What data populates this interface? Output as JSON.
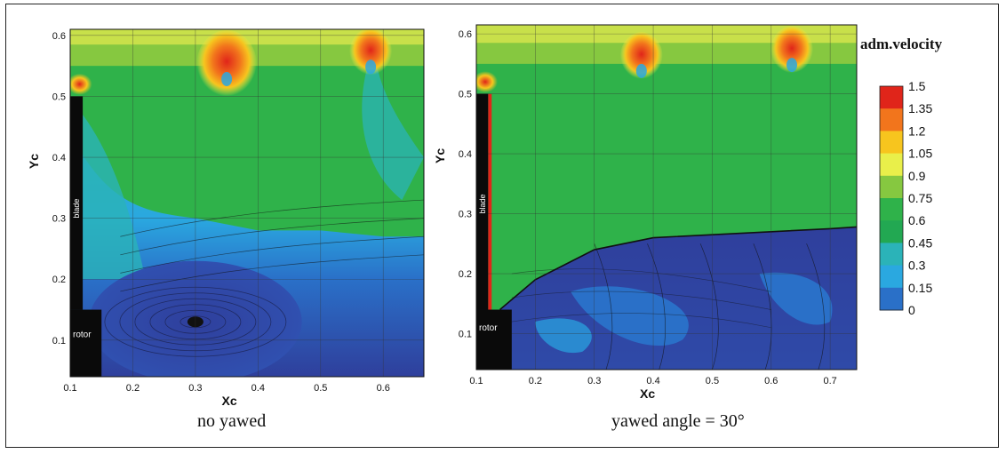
{
  "colorbar": {
    "title": "adm.velocity",
    "levels": [
      "1.5",
      "1.35",
      "1.2",
      "1.05",
      "0.9",
      "0.75",
      "0.6",
      "0.45",
      "0.3",
      "0.15",
      "0"
    ],
    "colors": [
      "#e0251a",
      "#f2751c",
      "#f7c51e",
      "#e9ef4a",
      "#86c840",
      "#2fb24a",
      "#22a852",
      "#2bb3b8",
      "#2aa8e0",
      "#2a70c8",
      "#2f3f9c"
    ]
  },
  "chart_data": [
    {
      "type": "heatmap",
      "caption": "no yawed",
      "xlabel": "Xc",
      "ylabel": "Yc",
      "x_ticks": [
        "0.1",
        "0.2",
        "0.3",
        "0.4",
        "0.5",
        "0.6"
      ],
      "y_ticks": [
        "0.1",
        "0.2",
        "0.3",
        "0.4",
        "0.5",
        "0.6"
      ],
      "xlim": [
        0.1,
        0.665
      ],
      "ylim": [
        0.04,
        0.61
      ],
      "grid": true,
      "labels": {
        "blade": "blade",
        "rotor": "rotor"
      },
      "features": {
        "blade": {
          "x": [
            0.1,
            0.12
          ],
          "y": [
            0.15,
            0.5
          ]
        },
        "rotor": {
          "x": [
            0.1,
            0.15
          ],
          "y": [
            0.04,
            0.15
          ]
        },
        "vortex_center": {
          "x": 0.3,
          "y": 0.13
        },
        "separation_line_y": [
          0.32,
          0.3,
          0.29,
          0.28,
          0.28,
          0.27
        ],
        "high_velocity_peaks": [
          {
            "x": 0.35,
            "y": 0.54
          },
          {
            "x": 0.58,
            "y": 0.56
          }
        ]
      }
    },
    {
      "type": "heatmap",
      "caption": "yawed angle = 30°",
      "xlabel": "Xc",
      "ylabel": "Yc",
      "x_ticks": [
        "0.1",
        "0.2",
        "0.3",
        "0.4",
        "0.5",
        "0.6",
        "0.7"
      ],
      "y_ticks": [
        "0.1",
        "0.2",
        "0.3",
        "0.4",
        "0.5",
        "0.6"
      ],
      "xlim": [
        0.1,
        0.745
      ],
      "ylim": [
        0.04,
        0.615
      ],
      "grid": true,
      "labels": {
        "blade": "blade",
        "rotor": "rotor"
      },
      "features": {
        "blade": {
          "x": [
            0.1,
            0.12
          ],
          "y": [
            0.14,
            0.5
          ]
        },
        "rotor": {
          "x": [
            0.1,
            0.16
          ],
          "y": [
            0.04,
            0.14
          ]
        },
        "separation_line": [
          [
            0.14,
            0.14
          ],
          [
            0.2,
            0.19
          ],
          [
            0.3,
            0.24
          ],
          [
            0.4,
            0.26
          ],
          [
            0.5,
            0.265
          ],
          [
            0.6,
            0.27
          ],
          [
            0.7,
            0.275
          ],
          [
            0.745,
            0.278
          ]
        ],
        "high_velocity_peaks": [
          {
            "x": 0.38,
            "y": 0.55
          },
          {
            "x": 0.635,
            "y": 0.56
          }
        ]
      }
    }
  ]
}
